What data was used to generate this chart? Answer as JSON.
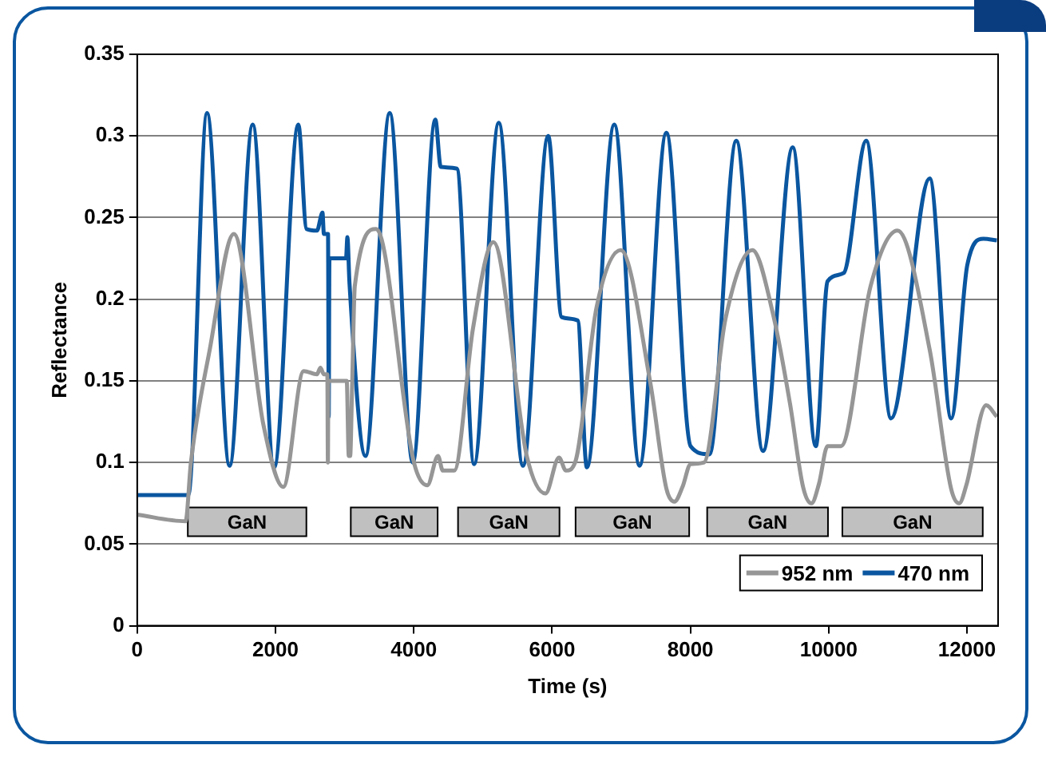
{
  "chart_data": {
    "type": "line",
    "xlabel": "Time (s)",
    "ylabel": "Reflectance",
    "xlim": [
      0,
      12450
    ],
    "xticks": [
      0,
      2000,
      4000,
      6000,
      8000,
      10000,
      12000
    ],
    "ylim": [
      0,
      0.35
    ],
    "yticks": [
      0,
      0.05,
      0.1,
      0.15,
      0.2,
      0.25,
      0.3,
      0.35
    ],
    "grid": "y",
    "legend": "bottom right",
    "line_style": "solid",
    "series": [
      {
        "name": "952 nm",
        "color": "#969696",
        "x": [
          0,
          700,
          777,
          1049,
          1399,
          1826,
          2113,
          2408,
          2600,
          2650,
          2700,
          2750,
          2758,
          2765,
          3030,
          3060,
          3070,
          3080,
          3110,
          3147,
          3457,
          4002,
          4196,
          4351,
          4420,
          4585,
          4856,
          5152,
          5634,
          5905,
          6100,
          6200,
          6333,
          6643,
          6993,
          7420,
          7653,
          7770,
          7886,
          8003,
          8198,
          8508,
          8897,
          9200,
          9441,
          9630,
          9751,
          9860,
          9984,
          10179,
          10606,
          10995,
          11461,
          11770,
          11888,
          11990,
          12277,
          12432
        ],
        "values": [
          0.068,
          0.064,
          0.1,
          0.169,
          0.24,
          0.123,
          0.085,
          0.156,
          0.154,
          0.158,
          0.154,
          0.154,
          0.1,
          0.15,
          0.15,
          0.104,
          0.104,
          0.104,
          0.15,
          0.208,
          0.243,
          0.1,
          0.086,
          0.104,
          0.095,
          0.095,
          0.182,
          0.235,
          0.104,
          0.081,
          0.103,
          0.095,
          0.1,
          0.195,
          0.23,
          0.149,
          0.084,
          0.076,
          0.085,
          0.099,
          0.1,
          0.188,
          0.23,
          0.19,
          0.136,
          0.085,
          0.075,
          0.087,
          0.11,
          0.11,
          0.208,
          0.242,
          0.169,
          0.084,
          0.075,
          0.086,
          0.135,
          0.128
        ]
      },
      {
        "name": "470 nm",
        "color": "#0a56a0",
        "x": [
          0,
          738,
          1010,
          1336,
          1671,
          1981,
          2331,
          2448,
          2600,
          2680,
          2700,
          2760,
          2770,
          2780,
          3020,
          3040,
          3070,
          3302,
          3652,
          3986,
          4312,
          4390,
          4623,
          4872,
          5229,
          5579,
          5944,
          6138,
          6371,
          6503,
          6900,
          7265,
          7653,
          8003,
          8275,
          8664,
          9051,
          9480,
          9814,
          9984,
          10217,
          10543,
          10902,
          11461,
          11772,
          12005,
          12238,
          12432
        ],
        "values": [
          0.08,
          0.08,
          0.314,
          0.098,
          0.307,
          0.097,
          0.307,
          0.243,
          0.242,
          0.253,
          0.24,
          0.24,
          0.128,
          0.225,
          0.225,
          0.238,
          0.21,
          0.104,
          0.314,
          0.1,
          0.31,
          0.281,
          0.28,
          0.099,
          0.308,
          0.098,
          0.3,
          0.189,
          0.187,
          0.097,
          0.307,
          0.098,
          0.302,
          0.11,
          0.105,
          0.297,
          0.107,
          0.293,
          0.11,
          0.211,
          0.216,
          0.297,
          0.127,
          0.274,
          0.127,
          0.221,
          0.237,
          0.236
        ]
      }
    ],
    "bands": [
      {
        "axis": "x",
        "from": 732,
        "to": 2447,
        "label": "GaN",
        "color": "#c0c0c0"
      },
      {
        "axis": "x",
        "from": 3089,
        "to": 4345,
        "label": "GaN",
        "color": "#c0c0c0"
      },
      {
        "axis": "x",
        "from": 4640,
        "to": 6107,
        "label": "GaN",
        "color": "#c0c0c0"
      },
      {
        "axis": "x",
        "from": 6340,
        "to": 7983,
        "label": "GaN",
        "color": "#c0c0c0"
      },
      {
        "axis": "x",
        "from": 8243,
        "to": 9990,
        "label": "GaN",
        "color": "#c0c0c0"
      },
      {
        "axis": "x",
        "from": 10198,
        "to": 12228,
        "label": "GaN",
        "color": "#c0c0c0"
      }
    ]
  }
}
